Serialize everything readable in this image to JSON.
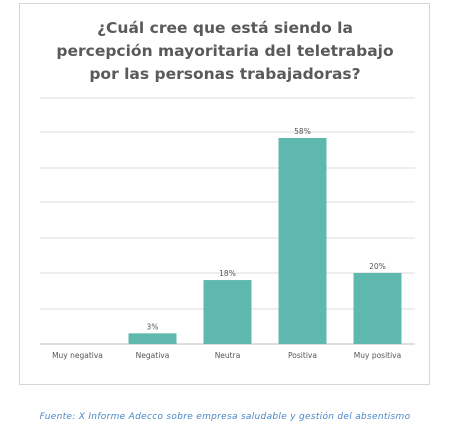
{
  "chart_data": {
    "type": "bar",
    "title": "¿Cuál cree que está siendo la\npercepción mayoritaria del teletrabajo\npor las personas trabajadoras?",
    "categories": [
      "Muy negativa",
      "Negativa",
      "Neutra",
      "Positiva",
      "Muy positiva"
    ],
    "values": [
      0,
      3,
      18,
      58,
      20
    ],
    "value_labels": [
      "",
      "3%",
      "18%",
      "58%",
      "20%"
    ],
    "ylim": [
      0,
      60
    ],
    "grid": true,
    "bar_color": "#5fb8ad",
    "xlabel": "",
    "ylabel": ""
  },
  "source_note": "Fuente: X Informe  Adecco sobre  empresa saludable  y gestión  del absentismo"
}
